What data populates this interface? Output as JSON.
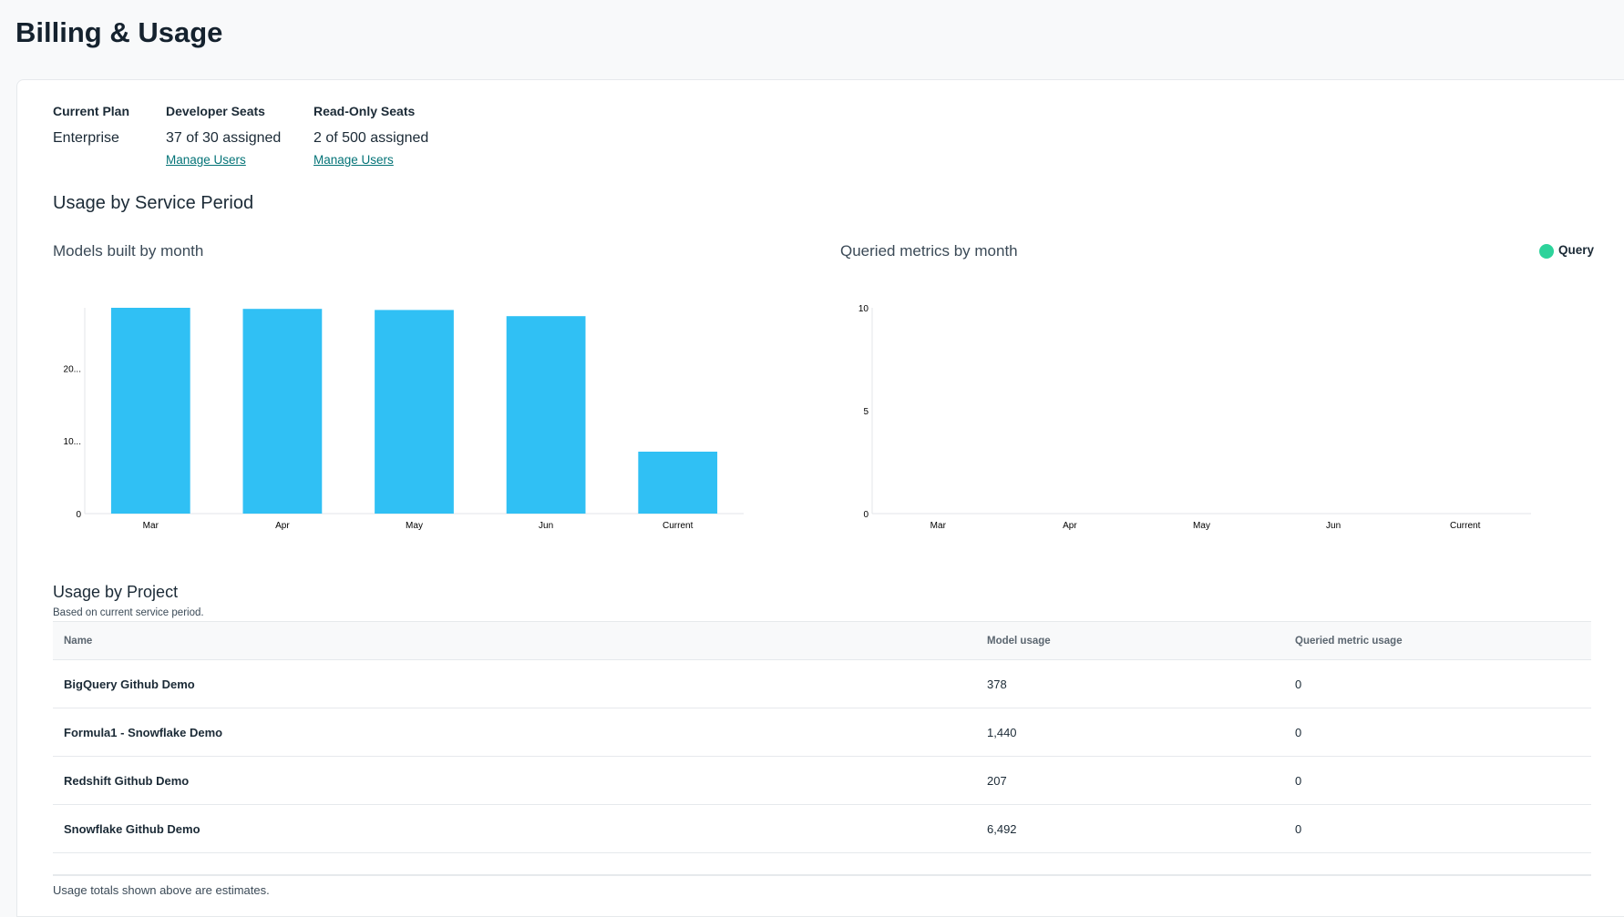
{
  "page": {
    "title": "Billing & Usage"
  },
  "summary": {
    "plan_label": "Current Plan",
    "plan_value": "Enterprise",
    "dev_label": "Developer Seats",
    "dev_value": "37 of 30 assigned",
    "dev_link": "Manage Users",
    "ro_label": "Read-Only Seats",
    "ro_value": "2 of 500 assigned",
    "ro_link": "Manage Users"
  },
  "service_period": {
    "heading": "Usage by Service Period"
  },
  "chart_data": [
    {
      "type": "bar",
      "title": "Models built by month",
      "categories": [
        "Mar",
        "Apr",
        "May",
        "Jun",
        "Current"
      ],
      "values": [
        28300,
        28150,
        28000,
        27150,
        8517
      ],
      "ylim": [
        0,
        28300
      ],
      "yticks": [
        0,
        10000,
        20000
      ],
      "ytick_labels": [
        "0",
        "10...",
        "20..."
      ],
      "color": "#30c0f4",
      "grid": false
    },
    {
      "type": "bar",
      "title": "Queried metrics by month",
      "categories": [
        "Mar",
        "Apr",
        "May",
        "Jun",
        "Current"
      ],
      "series": [
        {
          "name": "Query",
          "values": [
            0,
            0,
            0,
            0,
            0
          ]
        }
      ],
      "ylim": [
        0,
        10
      ],
      "yticks": [
        0,
        5,
        10
      ],
      "ytick_labels": [
        "0",
        "5",
        "10"
      ],
      "color": "#2dd39b",
      "legend": "top-right",
      "grid": false
    }
  ],
  "projects": {
    "heading": "Usage by Project",
    "subtitle": "Based on current service period.",
    "columns": [
      "Name",
      "Model usage",
      "Queried metric usage"
    ],
    "rows": [
      [
        "BigQuery Github Demo",
        "378",
        "0"
      ],
      [
        "Formula1 - Snowflake Demo",
        "1,440",
        "0"
      ],
      [
        "Redshift Github Demo",
        "207",
        "0"
      ],
      [
        "Snowflake Github Demo",
        "6,492",
        "0"
      ]
    ],
    "footnote": "Usage totals shown above are estimates."
  }
}
